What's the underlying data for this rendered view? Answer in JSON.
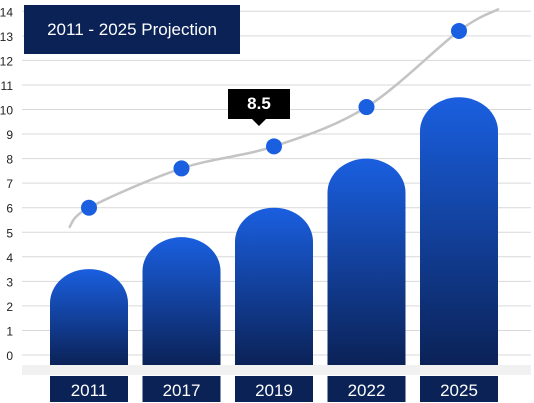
{
  "chart_data": {
    "type": "bar",
    "title": "2011 - 2025 Projection",
    "categories": [
      "2011",
      "2017",
      "2019",
      "2022",
      "2025"
    ],
    "series": [
      {
        "type": "bar",
        "values": [
          3.5,
          4.8,
          6.0,
          8.0,
          10.5
        ]
      },
      {
        "type": "line",
        "values": [
          6.0,
          7.6,
          8.5,
          10.1,
          13.2
        ]
      }
    ],
    "ylim": [
      0,
      14
    ],
    "yticks": [
      0,
      1,
      2,
      3,
      4,
      5,
      6,
      7,
      8,
      9,
      10,
      11,
      12,
      13,
      14
    ],
    "grid": true,
    "callout": {
      "category": "2019",
      "label": "8.5"
    },
    "colors": {
      "bar_top": "#1a5fe0",
      "bar_bottom": "#0b2257",
      "label_bg": "#0b2257",
      "line": "#c4c4c4",
      "marker": "#1a5fe0",
      "grid": "#d9d9d9"
    }
  }
}
